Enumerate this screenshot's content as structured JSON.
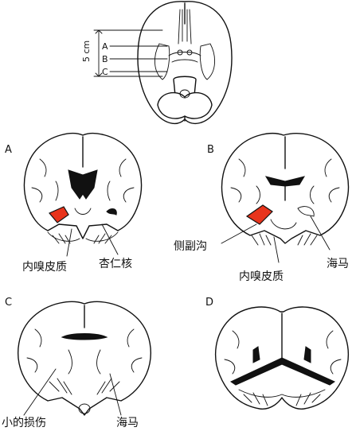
{
  "top_view": {
    "scale": "5 cm",
    "sections": [
      "A",
      "B",
      "C"
    ]
  },
  "panels": [
    {
      "letter": "A",
      "labels": [
        "内嗅皮质",
        "杏仁核"
      ]
    },
    {
      "letter": "B",
      "labels": [
        "侧副沟",
        "内嗅皮质",
        "海马"
      ]
    },
    {
      "letter": "C",
      "labels": [
        "小的损伤",
        "海马"
      ]
    },
    {
      "letter": "D",
      "labels": []
    }
  ],
  "colors": {
    "lesion": "#e8341c",
    "line": "#111111"
  }
}
